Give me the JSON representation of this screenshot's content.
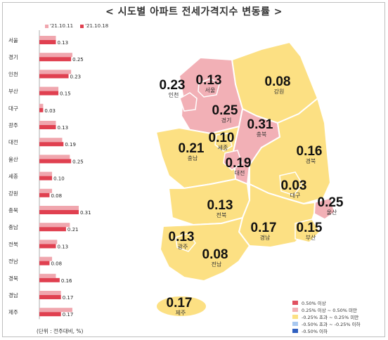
{
  "title": "< 시도별 아파트 전세가격지수 변동률 >",
  "unit_note": "(단위 : 전주대비, %)",
  "chart_data": [
    {
      "type": "bar",
      "orientation": "horizontal",
      "series": [
        {
          "name": "'21.10.11",
          "color": "#f0a6ae"
        },
        {
          "name": "'21.10.18",
          "color": "#e04050"
        }
      ],
      "categories": [
        "서울",
        "경기",
        "인천",
        "부산",
        "대구",
        "광주",
        "대전",
        "울산",
        "세종",
        "강원",
        "충북",
        "충남",
        "전북",
        "전남",
        "경북",
        "경남",
        "제주"
      ],
      "values": [
        [
          0.13,
          0.13
        ],
        [
          0.26,
          0.25
        ],
        [
          0.25,
          0.23
        ],
        [
          0.15,
          0.15
        ],
        [
          0.03,
          0.03
        ],
        [
          0.13,
          0.13
        ],
        [
          0.18,
          0.19
        ],
        [
          0.24,
          0.25
        ],
        [
          0.1,
          0.1
        ],
        [
          0.1,
          0.08
        ],
        [
          0.31,
          0.31
        ],
        [
          0.24,
          0.21
        ],
        [
          0.14,
          0.13
        ],
        [
          0.1,
          0.08
        ],
        [
          0.13,
          0.16
        ],
        [
          0.17,
          0.17
        ],
        [
          0.26,
          0.17
        ]
      ],
      "data_labels": [
        "0.13",
        "0.25",
        "0.23",
        "0.15",
        "0.03",
        "0.13",
        "0.19",
        "0.25",
        "0.10",
        "0.08",
        "0.31",
        "0.21",
        "0.13",
        "0.08",
        "0.16",
        "0.17",
        "0.17"
      ],
      "xlim": [
        0,
        0.34
      ]
    },
    {
      "type": "choropleth",
      "regions": [
        {
          "name": "인천",
          "value": "0.23",
          "color": "#f2b0b6"
        },
        {
          "name": "서울",
          "value": "0.13",
          "color": "#f2b0b6"
        },
        {
          "name": "강원",
          "value": "0.08",
          "color": "#fce083"
        },
        {
          "name": "경기",
          "value": "0.25",
          "color": "#f2b0b6"
        },
        {
          "name": "충북",
          "value": "0.31",
          "color": "#f2b0b6"
        },
        {
          "name": "세종",
          "value": "0.10",
          "color": "#fce083"
        },
        {
          "name": "대전",
          "value": "0.19",
          "color": "#f2b0b6"
        },
        {
          "name": "충남",
          "value": "0.21",
          "color": "#fce083"
        },
        {
          "name": "경북",
          "value": "0.16",
          "color": "#fce083"
        },
        {
          "name": "대구",
          "value": "0.03",
          "color": "#fce083"
        },
        {
          "name": "울산",
          "value": "0.25",
          "color": "#f2b0b6"
        },
        {
          "name": "전북",
          "value": "0.13",
          "color": "#fce083"
        },
        {
          "name": "경남",
          "value": "0.17",
          "color": "#fce083"
        },
        {
          "name": "부산",
          "value": "0.15",
          "color": "#fce083"
        },
        {
          "name": "광주",
          "value": "0.13",
          "color": "#fce083"
        },
        {
          "name": "전남",
          "value": "0.08",
          "color": "#fce083"
        },
        {
          "name": "제주",
          "value": "0.17",
          "color": "#fce083"
        }
      ],
      "legend": [
        {
          "label": "0.50% 이상",
          "color": "#e05060"
        },
        {
          "label": "0.25% 이상 ~ 0.50% 미만",
          "color": "#f2b0b6"
        },
        {
          "label": "-0.25% 초과 ~ 0.25% 미만",
          "color": "#fce083"
        },
        {
          "label": "-0.50% 초과 ~ -0.25% 이하",
          "color": "#a8c8f0"
        },
        {
          "label": "-0.50% 이하",
          "color": "#3060c0"
        }
      ]
    }
  ]
}
